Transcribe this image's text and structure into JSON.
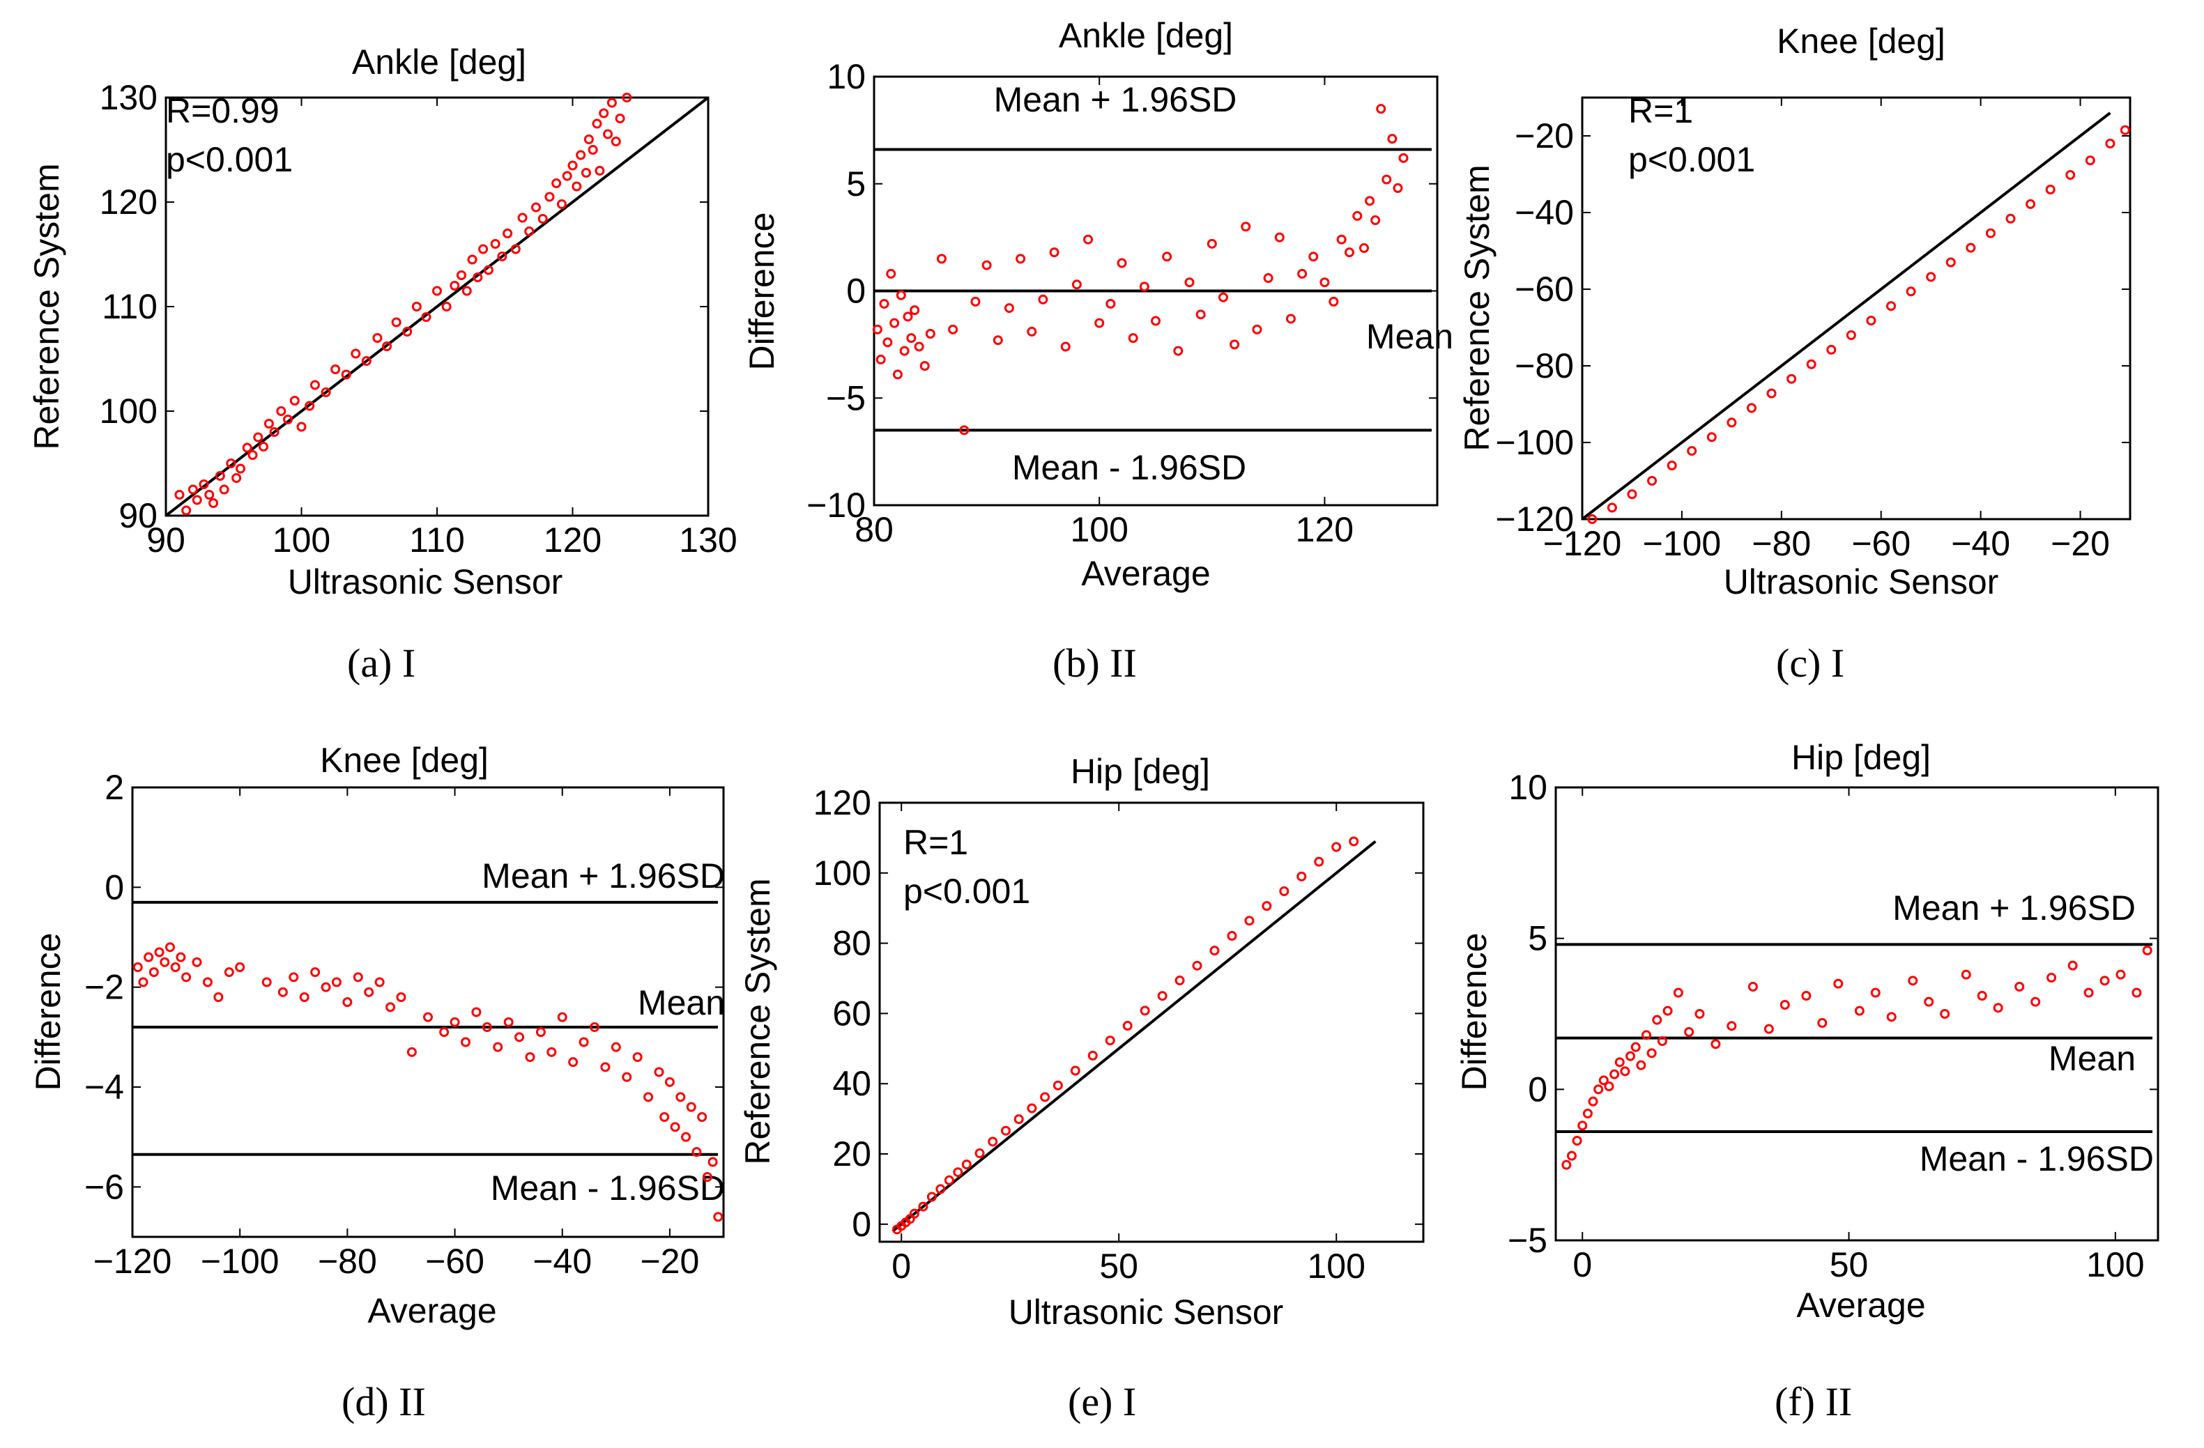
{
  "colors": {
    "points": "#ff0000",
    "lines": "#000000",
    "axes": "#000000"
  },
  "chart_data": [
    {
      "id": "a",
      "type": "scatter",
      "title": "Ankle [deg]",
      "xlabel": "Ultrasonic Sensor",
      "ylabel": "Reference System",
      "xlim": [
        90,
        130
      ],
      "ylim": [
        90,
        130
      ],
      "xticks": [
        90,
        100,
        110,
        120,
        130
      ],
      "yticks": [
        90,
        100,
        110,
        120,
        130
      ],
      "annotations": [
        "R=0.99",
        "p<0.001"
      ],
      "identity_line": {
        "x": [
          90,
          130
        ],
        "y": [
          90,
          130
        ]
      },
      "series": [
        {
          "name": "samples",
          "x": [
            91,
            91.5,
            92,
            92.3,
            92.8,
            93.2,
            93.5,
            94,
            94.3,
            94.8,
            95.2,
            95.5,
            96,
            96.4,
            96.8,
            97.2,
            97.6,
            98,
            98.5,
            99,
            99.5,
            100,
            100.6,
            101,
            101.8,
            102.5,
            103.3,
            104,
            104.8,
            105.6,
            106.3,
            107,
            107.8,
            108.5,
            109.2,
            110,
            110.7,
            111.3,
            111.8,
            112.2,
            112.6,
            113,
            113.4,
            113.8,
            114.3,
            114.8,
            115.2,
            115.8,
            116.3,
            116.8,
            117.3,
            117.8,
            118.3,
            118.8,
            119.2,
            119.6,
            120,
            120.3,
            120.6,
            121,
            121.2,
            121.5,
            121.8,
            122,
            122.3,
            122.6,
            122.9,
            123.2,
            123.5,
            124
          ],
          "y": [
            92,
            90.5,
            92.5,
            91.5,
            93,
            92,
            91.2,
            93.8,
            92.5,
            95,
            93.6,
            94.5,
            96.5,
            95.8,
            97.5,
            96.6,
            98.8,
            98,
            100,
            99.2,
            101,
            98.5,
            100.5,
            102.5,
            101.8,
            104,
            103.5,
            105.5,
            104.8,
            107,
            106.2,
            108.5,
            107.6,
            110,
            109,
            111.5,
            110,
            112,
            113,
            111.5,
            114.5,
            112.8,
            115.5,
            113.5,
            116,
            114.8,
            117,
            115.5,
            118.5,
            117.2,
            119.5,
            118.4,
            120.5,
            121.8,
            119.8,
            122.5,
            123.5,
            121.5,
            124.5,
            122.8,
            126,
            125,
            127.5,
            123,
            128.5,
            126.5,
            129.5,
            125.8,
            128,
            130
          ]
        }
      ]
    },
    {
      "id": "b",
      "type": "scatter",
      "title": "Ankle [deg]",
      "xlabel": "Average",
      "ylabel": "Difference",
      "xlim": [
        80,
        130
      ],
      "ylim": [
        -10,
        10
      ],
      "xticks": [
        80,
        100,
        120
      ],
      "yticks": [
        -10,
        -5,
        0,
        5,
        10
      ],
      "reference_lines": [
        {
          "label": "Mean + 1.96SD",
          "y": 6.6
        },
        {
          "label": "Mean",
          "y": 0
        },
        {
          "label": "Mean - 1.96SD",
          "y": -6.5
        }
      ],
      "series": [
        {
          "name": "samples",
          "x": [
            80.3,
            80.6,
            80.9,
            81.2,
            81.5,
            81.8,
            82.1,
            82.4,
            82.7,
            83,
            83.3,
            83.6,
            84,
            84.5,
            85,
            86,
            87,
            88,
            89,
            90,
            91,
            92,
            93,
            94,
            95,
            96,
            97,
            98,
            99,
            100,
            101,
            102,
            103,
            104,
            105,
            106,
            107,
            108,
            109,
            110,
            111,
            112,
            113,
            114,
            115,
            116,
            117,
            118,
            119,
            120,
            120.8,
            121.5,
            122.2,
            122.9,
            123.5,
            124,
            124.5,
            125,
            125.5,
            126,
            126.5,
            127
          ],
          "y": [
            -1.8,
            -3.2,
            -0.6,
            -2.4,
            0.8,
            -1.5,
            -3.9,
            -0.2,
            -2.8,
            -1.2,
            -2.2,
            -0.9,
            -2.6,
            -3.5,
            -2,
            1.5,
            -1.8,
            -6.5,
            -0.5,
            1.2,
            -2.3,
            -0.8,
            1.5,
            -1.9,
            -0.4,
            1.8,
            -2.6,
            0.3,
            2.4,
            -1.5,
            -0.6,
            1.3,
            -2.2,
            0.2,
            -1.4,
            1.6,
            -2.8,
            0.4,
            -1.1,
            2.2,
            -0.3,
            -2.5,
            3,
            -1.8,
            0.6,
            2.5,
            -1.3,
            0.8,
            1.6,
            0.4,
            -0.5,
            2.4,
            1.8,
            3.5,
            2,
            4.2,
            3.3,
            8.5,
            5.2,
            7.1,
            4.8,
            6.2
          ]
        }
      ]
    },
    {
      "id": "c",
      "type": "scatter",
      "title": "Knee [deg]",
      "xlabel": "Ultrasonic Sensor",
      "ylabel": "Reference System",
      "xlim": [
        -120,
        -10
      ],
      "ylim": [
        -120,
        -10
      ],
      "xticks": [
        -120,
        -100,
        -80,
        -60,
        -40,
        -20
      ],
      "yticks": [
        -120,
        -100,
        -80,
        -60,
        -40,
        -20
      ],
      "annotations": [
        "R=1",
        "p<0.001"
      ],
      "identity_line": {
        "x": [
          -120,
          -14
        ],
        "y": [
          -120,
          -14
        ]
      },
      "series": [
        {
          "name": "samples",
          "x": [
            -118,
            -114,
            -110,
            -106,
            -102,
            -98,
            -94,
            -90,
            -86,
            -82,
            -78,
            -74,
            -70,
            -66,
            -62,
            -58,
            -54,
            -50,
            -46,
            -42,
            -38,
            -34,
            -30,
            -26,
            -22,
            -18,
            -14,
            -11
          ],
          "y": [
            -120,
            -117,
            -113.5,
            -110,
            -106,
            -102.2,
            -98.6,
            -94.8,
            -91,
            -87.2,
            -83.4,
            -79.6,
            -75.8,
            -72,
            -68.2,
            -64.4,
            -60.6,
            -56.8,
            -53,
            -49.2,
            -45.4,
            -41.6,
            -37.8,
            -34,
            -30.2,
            -26.4,
            -22,
            -18.5
          ]
        }
      ]
    },
    {
      "id": "d",
      "type": "scatter",
      "title": "Knee [deg]",
      "xlabel": "Average",
      "ylabel": "Difference",
      "xlim": [
        -120,
        -10
      ],
      "ylim": [
        -7,
        2
      ],
      "xticks": [
        -120,
        -100,
        -80,
        -60,
        -40,
        -20
      ],
      "yticks": [
        -6,
        -4,
        -2,
        0,
        2
      ],
      "reference_lines": [
        {
          "label": "Mean + 1.96SD",
          "y": -0.3
        },
        {
          "label": "Mean",
          "y": -2.8
        },
        {
          "label": "Mean - 1.96SD",
          "y": -5.35
        }
      ],
      "series": [
        {
          "name": "samples",
          "x": [
            -119,
            -118,
            -117,
            -116,
            -115,
            -114,
            -113,
            -112,
            -111,
            -110,
            -108,
            -106,
            -104,
            -102,
            -100,
            -95,
            -92,
            -90,
            -88,
            -86,
            -84,
            -82,
            -80,
            -78,
            -76,
            -74,
            -72,
            -70,
            -68,
            -65,
            -62,
            -60,
            -58,
            -56,
            -54,
            -52,
            -50,
            -48,
            -46,
            -44,
            -42,
            -40,
            -38,
            -36,
            -34,
            -32,
            -30,
            -28,
            -26,
            -24,
            -22,
            -21,
            -20,
            -19,
            -18,
            -17,
            -16,
            -15,
            -14,
            -13,
            -12,
            -11
          ],
          "y": [
            -1.6,
            -1.9,
            -1.4,
            -1.7,
            -1.3,
            -1.5,
            -1.2,
            -1.6,
            -1.4,
            -1.8,
            -1.5,
            -1.9,
            -2.2,
            -1.7,
            -1.6,
            -1.9,
            -2.1,
            -1.8,
            -2.2,
            -1.7,
            -2,
            -1.9,
            -2.3,
            -1.8,
            -2.1,
            -1.9,
            -2.4,
            -2.2,
            -3.3,
            -2.6,
            -2.9,
            -2.7,
            -3.1,
            -2.5,
            -2.8,
            -3.2,
            -2.7,
            -3,
            -3.4,
            -2.9,
            -3.3,
            -2.6,
            -3.5,
            -3.1,
            -2.8,
            -3.6,
            -3.2,
            -3.8,
            -3.4,
            -4.2,
            -3.7,
            -4.6,
            -3.9,
            -4.8,
            -4.2,
            -5,
            -4.4,
            -5.3,
            -4.6,
            -5.8,
            -5.5,
            -6.6
          ]
        }
      ]
    },
    {
      "id": "e",
      "type": "scatter",
      "title": "Hip [deg]",
      "xlabel": "Ultrasonic Sensor",
      "ylabel": "Reference System",
      "xlim": [
        -5,
        120
      ],
      "ylim": [
        -5,
        120
      ],
      "xticks": [
        0,
        50,
        100
      ],
      "yticks": [
        0,
        20,
        40,
        60,
        80,
        100,
        120
      ],
      "annotations": [
        "R=1",
        "p<0.001"
      ],
      "identity_line": {
        "x": [
          -2,
          109
        ],
        "y": [
          -2,
          109
        ]
      },
      "series": [
        {
          "name": "samples",
          "x": [
            -1,
            0,
            1,
            2,
            3,
            5,
            7,
            9,
            11,
            13,
            15,
            18,
            21,
            24,
            27,
            30,
            33,
            36,
            40,
            44,
            48,
            52,
            56,
            60,
            64,
            68,
            72,
            76,
            80,
            84,
            88,
            92,
            96,
            100,
            104
          ],
          "y": [
            -1.5,
            -0.5,
            0.5,
            1.5,
            3,
            5,
            7.8,
            10,
            12.5,
            14.8,
            17,
            20.2,
            23.5,
            26.6,
            29.9,
            33,
            36.2,
            39.5,
            43.7,
            48,
            52.3,
            56.5,
            60.8,
            65,
            69.4,
            73.6,
            77.9,
            82.1,
            86.4,
            90.6,
            94.8,
            99,
            103.2,
            107.4,
            109
          ]
        }
      ]
    },
    {
      "id": "f",
      "type": "scatter",
      "title": "Hip [deg]",
      "xlabel": "Average",
      "ylabel": "Difference",
      "xlim": [
        -5,
        108
      ],
      "ylim": [
        -5,
        10
      ],
      "xticks": [
        0,
        50,
        100
      ],
      "yticks": [
        -5,
        0,
        5,
        10
      ],
      "reference_lines": [
        {
          "label": "Mean + 1.96SD",
          "y": 4.8
        },
        {
          "label": "Mean",
          "y": 1.7
        },
        {
          "label": "Mean - 1.96SD",
          "y": -1.4
        }
      ],
      "series": [
        {
          "name": "samples",
          "x": [
            -3,
            -2,
            -1,
            0,
            1,
            2,
            3,
            4,
            5,
            6,
            7,
            8,
            9,
            10,
            11,
            12,
            13,
            14,
            15,
            16,
            18,
            20,
            22,
            25,
            28,
            32,
            35,
            38,
            42,
            45,
            48,
            52,
            55,
            58,
            62,
            65,
            68,
            72,
            75,
            78,
            82,
            85,
            88,
            92,
            95,
            98,
            101,
            104,
            106
          ],
          "y": [
            -2.5,
            -2.2,
            -1.7,
            -1.2,
            -0.8,
            -0.4,
            0,
            0.3,
            0.1,
            0.5,
            0.9,
            0.6,
            1.1,
            1.4,
            0.8,
            1.8,
            1.2,
            2.3,
            1.6,
            2.6,
            3.2,
            1.9,
            2.5,
            1.5,
            2.1,
            3.4,
            2,
            2.8,
            3.1,
            2.2,
            3.5,
            2.6,
            3.2,
            2.4,
            3.6,
            2.9,
            2.5,
            3.8,
            3.1,
            2.7,
            3.4,
            2.9,
            3.7,
            4.1,
            3.2,
            3.6,
            3.8,
            3.2,
            4.6
          ]
        }
      ]
    }
  ],
  "captions": [
    {
      "id": "a",
      "label": "(a)",
      "tag": "I"
    },
    {
      "id": "b",
      "label": "(b)",
      "tag": "II"
    },
    {
      "id": "c",
      "label": "(c)",
      "tag": "I"
    },
    {
      "id": "d",
      "label": "(d)",
      "tag": "II"
    },
    {
      "id": "e",
      "label": "(e)",
      "tag": "I"
    },
    {
      "id": "f",
      "label": "(f)",
      "tag": "II"
    }
  ]
}
